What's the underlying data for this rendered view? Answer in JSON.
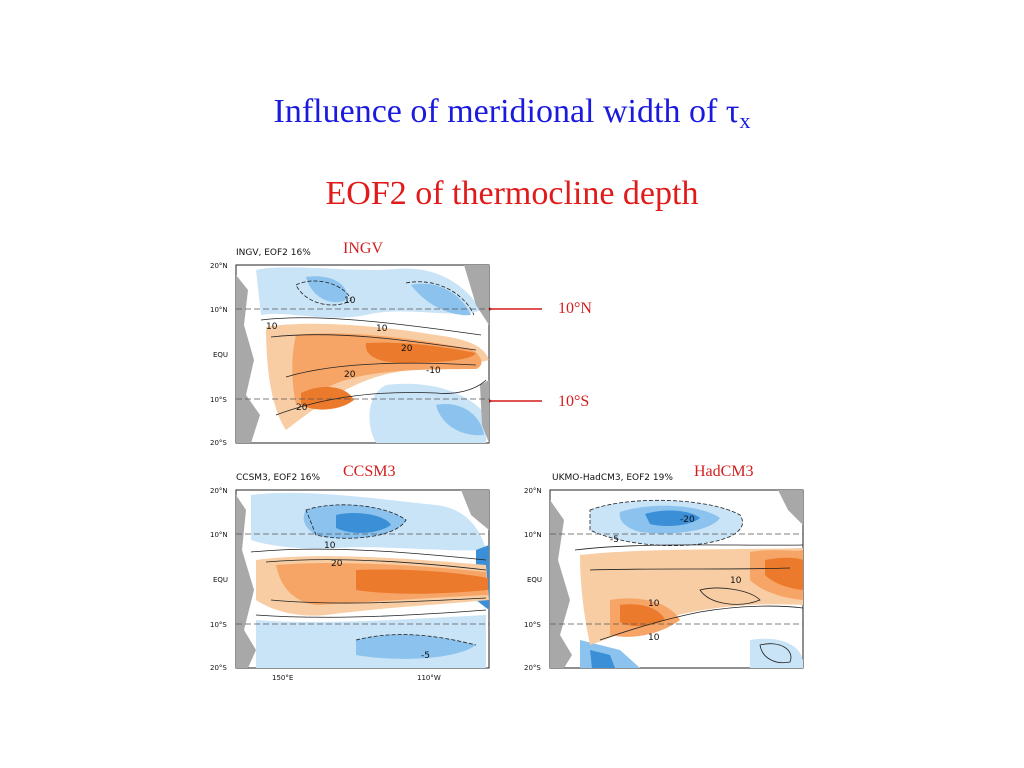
{
  "title": {
    "main": "Influence of meridional width of ",
    "symbol": "τ",
    "subscript": "x"
  },
  "subtitle": "EOF2 of thermocline depth",
  "panels": {
    "ingv": {
      "label": "INGV",
      "plot_title": "INGV, EOF2 16%",
      "lat_ticks": [
        "20°N",
        "10°N",
        "EQU",
        "10°S",
        "20°S"
      ],
      "contour_labels": [
        "10",
        "10",
        "-10",
        "20",
        "20",
        "20",
        "10"
      ]
    },
    "ccsm3": {
      "label": "CCSM3",
      "plot_title": "CCSM3, EOF2 16%",
      "lat_ticks": [
        "20°N",
        "10°N",
        "EQU",
        "10°S",
        "20°S"
      ],
      "lon_ticks": [
        "150°E",
        "110°W"
      ],
      "contour_labels": [
        "10",
        "20",
        "-5"
      ]
    },
    "hadcm3": {
      "label": "HadCM3",
      "plot_title": "UKMO-HadCM3, EOF2 19%",
      "lat_ticks": [
        "20°N",
        "10°N",
        "EQU",
        "10°S",
        "20°S"
      ],
      "contour_labels": [
        "-5",
        "-20",
        "10",
        "10",
        "10"
      ]
    }
  },
  "annotations": {
    "north": "10°N",
    "south": "10°S"
  },
  "colors": {
    "title": "#1a1adf",
    "subtitle": "#e11a1a",
    "labels": "#d41c1c",
    "arrow": "#d41c1c",
    "pos_light": "#f8cda3",
    "pos_mid": "#f6a567",
    "pos_dark": "#ec7a2c",
    "neg_light": "#c9e3f7",
    "neg_mid": "#8cc3ee",
    "neg_dark": "#3a8fd6",
    "land": "#a8a8a8"
  }
}
